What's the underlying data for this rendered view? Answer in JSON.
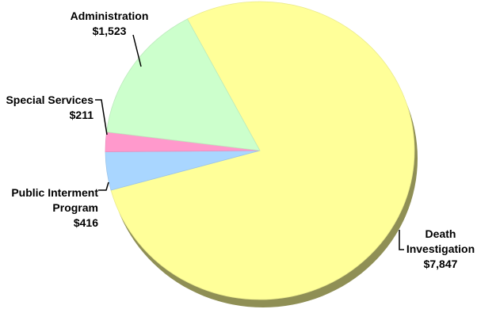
{
  "chart_data": {
    "type": "pie",
    "title": "",
    "currency_unit": "",
    "slices": [
      {
        "label_lines": [
          "Death",
          "Investigation"
        ],
        "value": 7847,
        "value_label": "$7,847",
        "color": "#ffff99"
      },
      {
        "label_lines": [
          "Public Interment",
          "Program"
        ],
        "value": 416,
        "value_label": "$416",
        "color": "#a9d6ff"
      },
      {
        "label_lines": [
          "Special Services"
        ],
        "value": 211,
        "value_label": "$211",
        "color": "#ff99cc"
      },
      {
        "label_lines": [
          "Administration"
        ],
        "value": 1523,
        "value_label": "$1,523",
        "color": "#ccffcc"
      }
    ],
    "legend": "none",
    "style": "3d-tilted"
  }
}
